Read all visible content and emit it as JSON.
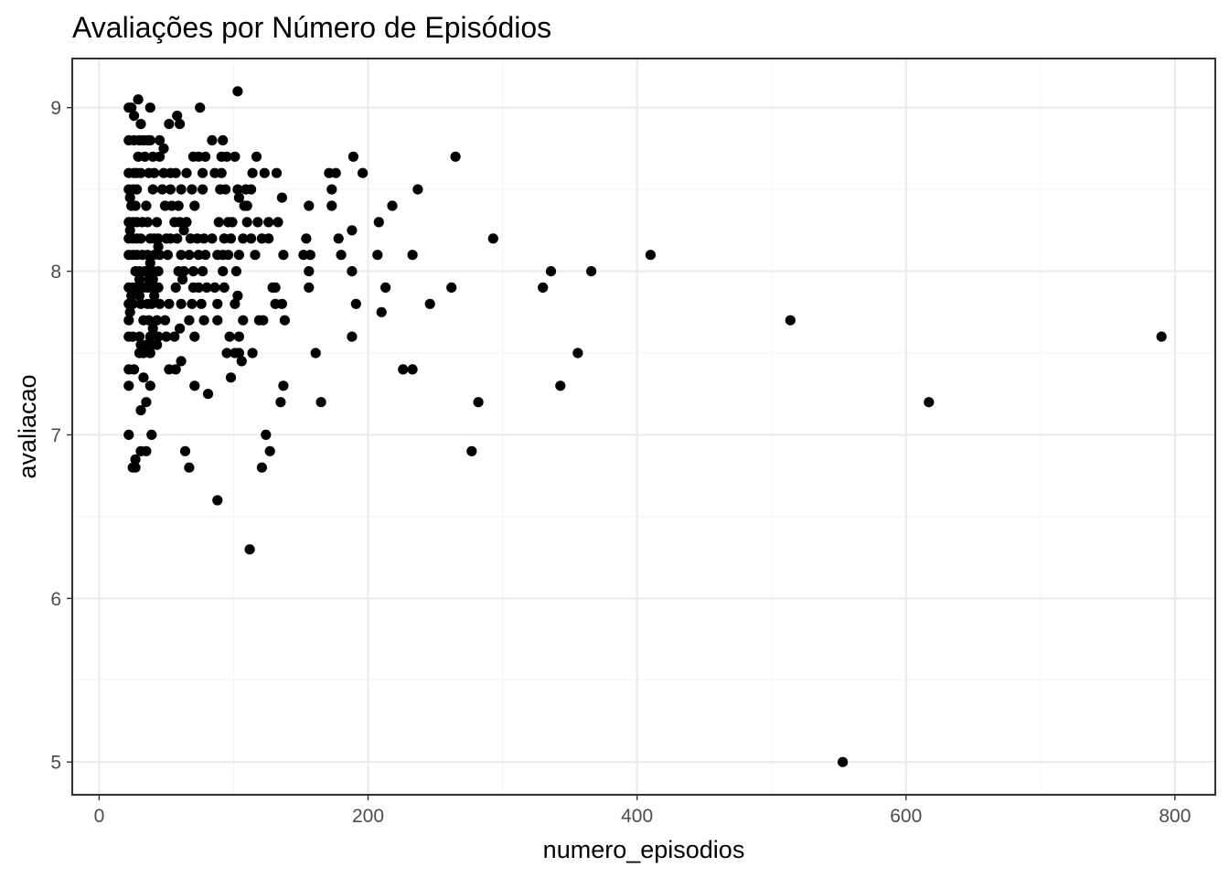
{
  "chart_data": {
    "type": "scatter",
    "title": "Avaliações por Número de Episódios",
    "xlabel": "numero_episodios",
    "ylabel": "avaliacao",
    "xlim": [
      -20,
      830
    ],
    "ylim": [
      4.8,
      9.3
    ],
    "x_ticks": [
      0,
      200,
      400,
      600,
      800
    ],
    "y_ticks": [
      5,
      6,
      7,
      8,
      9
    ],
    "x_minor": [
      100,
      300,
      500,
      700
    ],
    "y_minor": [
      5.5,
      6.5,
      7.5,
      8.5
    ],
    "grid": true,
    "legend": "none",
    "point_color": "#000000",
    "points": [
      [
        22,
        9.0
      ],
      [
        24,
        9.0
      ],
      [
        26,
        8.95
      ],
      [
        29,
        9.05
      ],
      [
        31,
        8.9
      ],
      [
        38,
        9.0
      ],
      [
        52,
        8.9
      ],
      [
        58,
        8.95
      ],
      [
        60,
        8.9
      ],
      [
        75,
        9.0
      ],
      [
        103,
        9.1
      ],
      [
        22,
        8.8
      ],
      [
        26,
        8.8
      ],
      [
        30,
        8.8
      ],
      [
        33,
        8.8
      ],
      [
        36,
        8.8
      ],
      [
        38,
        8.8
      ],
      [
        45,
        8.8
      ],
      [
        48,
        8.75
      ],
      [
        84,
        8.8
      ],
      [
        92,
        8.8
      ],
      [
        117,
        8.7
      ],
      [
        189,
        8.7
      ],
      [
        265,
        8.7
      ],
      [
        29,
        8.7
      ],
      [
        34,
        8.7
      ],
      [
        40,
        8.7
      ],
      [
        45,
        8.7
      ],
      [
        70,
        8.7
      ],
      [
        74,
        8.7
      ],
      [
        79,
        8.7
      ],
      [
        91,
        8.7
      ],
      [
        95,
        8.7
      ],
      [
        101,
        8.7
      ],
      [
        22,
        8.6
      ],
      [
        26,
        8.6
      ],
      [
        28,
        8.6
      ],
      [
        31,
        8.6
      ],
      [
        37,
        8.6
      ],
      [
        41,
        8.6
      ],
      [
        48,
        8.6
      ],
      [
        53,
        8.6
      ],
      [
        57,
        8.6
      ],
      [
        65,
        8.6
      ],
      [
        77,
        8.6
      ],
      [
        86,
        8.6
      ],
      [
        91,
        8.6
      ],
      [
        114,
        8.6
      ],
      [
        123,
        8.6
      ],
      [
        132,
        8.6
      ],
      [
        171,
        8.6
      ],
      [
        176,
        8.6
      ],
      [
        196,
        8.6
      ],
      [
        22,
        8.5
      ],
      [
        25,
        8.5
      ],
      [
        28,
        8.5
      ],
      [
        40,
        8.5
      ],
      [
        47,
        8.5
      ],
      [
        53,
        8.5
      ],
      [
        61,
        8.5
      ],
      [
        69,
        8.5
      ],
      [
        77,
        8.5
      ],
      [
        90,
        8.5
      ],
      [
        94,
        8.5
      ],
      [
        103,
        8.5
      ],
      [
        109,
        8.5
      ],
      [
        113,
        8.5
      ],
      [
        173,
        8.5
      ],
      [
        237,
        8.5
      ],
      [
        23,
        8.45
      ],
      [
        104,
        8.45
      ],
      [
        136,
        8.45
      ],
      [
        24,
        8.4
      ],
      [
        27,
        8.4
      ],
      [
        35,
        8.4
      ],
      [
        49,
        8.4
      ],
      [
        54,
        8.4
      ],
      [
        59,
        8.4
      ],
      [
        71,
        8.4
      ],
      [
        108,
        8.4
      ],
      [
        110,
        8.4
      ],
      [
        156,
        8.4
      ],
      [
        173,
        8.4
      ],
      [
        218,
        8.4
      ],
      [
        22,
        8.3
      ],
      [
        25,
        8.3
      ],
      [
        28,
        8.3
      ],
      [
        32,
        8.3
      ],
      [
        36,
        8.3
      ],
      [
        43,
        8.3
      ],
      [
        56,
        8.3
      ],
      [
        60,
        8.3
      ],
      [
        65,
        8.3
      ],
      [
        89,
        8.3
      ],
      [
        96,
        8.3
      ],
      [
        99,
        8.3
      ],
      [
        110,
        8.3
      ],
      [
        118,
        8.3
      ],
      [
        126,
        8.3
      ],
      [
        133,
        8.3
      ],
      [
        208,
        8.3
      ],
      [
        23,
        8.25
      ],
      [
        63,
        8.25
      ],
      [
        188,
        8.25
      ],
      [
        22,
        8.2
      ],
      [
        25,
        8.2
      ],
      [
        28,
        8.2
      ],
      [
        31,
        8.2
      ],
      [
        38,
        8.2
      ],
      [
        41,
        8.2
      ],
      [
        44,
        8.2
      ],
      [
        50,
        8.2
      ],
      [
        53,
        8.2
      ],
      [
        58,
        8.2
      ],
      [
        68,
        8.2
      ],
      [
        73,
        8.2
      ],
      [
        78,
        8.2
      ],
      [
        84,
        8.2
      ],
      [
        93,
        8.2
      ],
      [
        98,
        8.2
      ],
      [
        107,
        8.2
      ],
      [
        113,
        8.2
      ],
      [
        121,
        8.2
      ],
      [
        126,
        8.2
      ],
      [
        154,
        8.2
      ],
      [
        178,
        8.2
      ],
      [
        293,
        8.2
      ],
      [
        44,
        8.15
      ],
      [
        22,
        8.1
      ],
      [
        25,
        8.1
      ],
      [
        28,
        8.1
      ],
      [
        32,
        8.1
      ],
      [
        36,
        8.1
      ],
      [
        41,
        8.1
      ],
      [
        45,
        8.1
      ],
      [
        51,
        8.1
      ],
      [
        61,
        8.1
      ],
      [
        67,
        8.1
      ],
      [
        74,
        8.1
      ],
      [
        79,
        8.1
      ],
      [
        88,
        8.1
      ],
      [
        92,
        8.1
      ],
      [
        96,
        8.1
      ],
      [
        104,
        8.1
      ],
      [
        116,
        8.1
      ],
      [
        137,
        8.1
      ],
      [
        152,
        8.1
      ],
      [
        157,
        8.1
      ],
      [
        180,
        8.1
      ],
      [
        207,
        8.1
      ],
      [
        233,
        8.1
      ],
      [
        410,
        8.1
      ],
      [
        38,
        8.05
      ],
      [
        27,
        8.0
      ],
      [
        30,
        8.0
      ],
      [
        34,
        8.0
      ],
      [
        40,
        8.0
      ],
      [
        44,
        8.0
      ],
      [
        59,
        8.0
      ],
      [
        63,
        8.0
      ],
      [
        70,
        8.0
      ],
      [
        77,
        8.0
      ],
      [
        92,
        8.0
      ],
      [
        102,
        8.0
      ],
      [
        156,
        8.0
      ],
      [
        188,
        8.0
      ],
      [
        336,
        8.0
      ],
      [
        366,
        8.0
      ],
      [
        30,
        7.95
      ],
      [
        37,
        7.95
      ],
      [
        40,
        7.95
      ],
      [
        62,
        7.95
      ],
      [
        22,
        7.9
      ],
      [
        25,
        7.9
      ],
      [
        28,
        7.9
      ],
      [
        33,
        7.9
      ],
      [
        36,
        7.9
      ],
      [
        39,
        7.9
      ],
      [
        44,
        7.9
      ],
      [
        57,
        7.9
      ],
      [
        70,
        7.9
      ],
      [
        74,
        7.9
      ],
      [
        80,
        7.9
      ],
      [
        86,
        7.9
      ],
      [
        93,
        7.9
      ],
      [
        129,
        7.9
      ],
      [
        131,
        7.9
      ],
      [
        156,
        7.9
      ],
      [
        213,
        7.9
      ],
      [
        262,
        7.9
      ],
      [
        330,
        7.9
      ],
      [
        24,
        7.85
      ],
      [
        30,
        7.85
      ],
      [
        41,
        7.85
      ],
      [
        103,
        7.85
      ],
      [
        22,
        7.8
      ],
      [
        25,
        7.8
      ],
      [
        31,
        7.8
      ],
      [
        36,
        7.8
      ],
      [
        39,
        7.8
      ],
      [
        45,
        7.8
      ],
      [
        52,
        7.8
      ],
      [
        61,
        7.8
      ],
      [
        69,
        7.8
      ],
      [
        76,
        7.8
      ],
      [
        88,
        7.8
      ],
      [
        101,
        7.8
      ],
      [
        131,
        7.8
      ],
      [
        136,
        7.8
      ],
      [
        191,
        7.8
      ],
      [
        246,
        7.8
      ],
      [
        23,
        7.75
      ],
      [
        210,
        7.75
      ],
      [
        22,
        7.7
      ],
      [
        33,
        7.7
      ],
      [
        37,
        7.7
      ],
      [
        43,
        7.7
      ],
      [
        49,
        7.7
      ],
      [
        67,
        7.7
      ],
      [
        78,
        7.7
      ],
      [
        88,
        7.7
      ],
      [
        107,
        7.7
      ],
      [
        119,
        7.7
      ],
      [
        122,
        7.7
      ],
      [
        138,
        7.7
      ],
      [
        514,
        7.7
      ],
      [
        40,
        7.65
      ],
      [
        60,
        7.65
      ],
      [
        22,
        7.6
      ],
      [
        25,
        7.6
      ],
      [
        30,
        7.6
      ],
      [
        38,
        7.6
      ],
      [
        44,
        7.6
      ],
      [
        50,
        7.6
      ],
      [
        56,
        7.6
      ],
      [
        71,
        7.6
      ],
      [
        97,
        7.6
      ],
      [
        104,
        7.6
      ],
      [
        188,
        7.6
      ],
      [
        790,
        7.6
      ],
      [
        31,
        7.55
      ],
      [
        35,
        7.55
      ],
      [
        39,
        7.55
      ],
      [
        43,
        7.55
      ],
      [
        30,
        7.5
      ],
      [
        33,
        7.5
      ],
      [
        38,
        7.5
      ],
      [
        95,
        7.5
      ],
      [
        101,
        7.5
      ],
      [
        104,
        7.5
      ],
      [
        114,
        7.5
      ],
      [
        161,
        7.5
      ],
      [
        356,
        7.5
      ],
      [
        61,
        7.45
      ],
      [
        106,
        7.45
      ],
      [
        22,
        7.4
      ],
      [
        26,
        7.4
      ],
      [
        52,
        7.4
      ],
      [
        57,
        7.4
      ],
      [
        226,
        7.4
      ],
      [
        233,
        7.4
      ],
      [
        33,
        7.35
      ],
      [
        98,
        7.35
      ],
      [
        22,
        7.3
      ],
      [
        38,
        7.3
      ],
      [
        71,
        7.3
      ],
      [
        137,
        7.3
      ],
      [
        343,
        7.3
      ],
      [
        81,
        7.25
      ],
      [
        35,
        7.2
      ],
      [
        135,
        7.2
      ],
      [
        165,
        7.2
      ],
      [
        282,
        7.2
      ],
      [
        617,
        7.2
      ],
      [
        31,
        7.15
      ],
      [
        22,
        7.0
      ],
      [
        39,
        7.0
      ],
      [
        124,
        7.0
      ],
      [
        31,
        6.9
      ],
      [
        35,
        6.9
      ],
      [
        64,
        6.9
      ],
      [
        127,
        6.9
      ],
      [
        277,
        6.9
      ],
      [
        27,
        6.85
      ],
      [
        25,
        6.8
      ],
      [
        27,
        6.8
      ],
      [
        67,
        6.8
      ],
      [
        121,
        6.8
      ],
      [
        88,
        6.6
      ],
      [
        112,
        6.3
      ],
      [
        553,
        5.0
      ]
    ]
  }
}
